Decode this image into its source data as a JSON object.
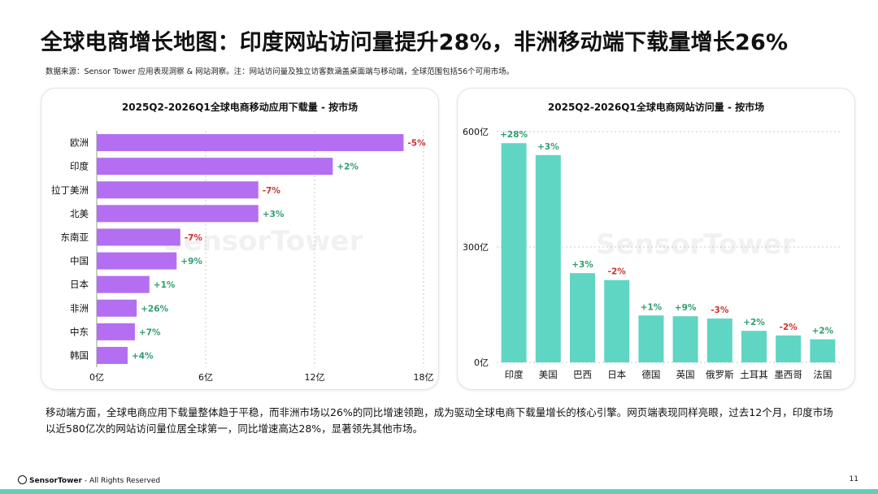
{
  "header": {
    "title": "全球电商增长地图：印度网站访问量提升28%，非洲移动端下载量增长26%",
    "source": "数据来源：Sensor Tower 应用表现洞察 & 网站洞察。注：网站访问量及独立访客数涵盖桌面端与移动端，全球范围包括56个可用市场。"
  },
  "chart_data": [
    {
      "type": "bar",
      "orientation": "horizontal",
      "title": "2025Q2-2026Q1全球电商移动应用下载量 - 按市场",
      "categories": [
        "欧洲",
        "印度",
        "拉丁美洲",
        "北美",
        "东南亚",
        "中国",
        "日本",
        "非洲",
        "中东",
        "韩国"
      ],
      "values": [
        16.9,
        13.0,
        8.9,
        8.9,
        4.6,
        4.4,
        2.9,
        2.2,
        2.1,
        1.7
      ],
      "data_labels": [
        "-5%",
        "+2%",
        "-7%",
        "+3%",
        "-7%",
        "+9%",
        "+1%",
        "+26%",
        "+7%",
        "+4%"
      ],
      "x_ticks": [
        "0亿",
        "6亿",
        "12亿",
        "18亿"
      ],
      "xlim": [
        0,
        18
      ],
      "grid": "vertical dotted",
      "colors": {
        "bar": "#b46ef1",
        "positive": "#2e9e6e",
        "negative": "#d1302f"
      }
    },
    {
      "type": "bar",
      "orientation": "vertical",
      "title": "2025Q2-2026Q1全球电商网站访问量 - 按市场",
      "categories": [
        "印度",
        "美国",
        "巴西",
        "日本",
        "德国",
        "英国",
        "俄罗斯",
        "土耳其",
        "墨西哥",
        "法国"
      ],
      "values": [
        570,
        539,
        232,
        214,
        122,
        120,
        114,
        82,
        70,
        60
      ],
      "data_labels": [
        "+28%",
        "+3%",
        "+3%",
        "-2%",
        "+1%",
        "+9%",
        "-3%",
        "+2%",
        "-2%",
        "+2%"
      ],
      "y_ticks": [
        "0亿",
        "300亿",
        "600亿"
      ],
      "ylim": [
        0,
        600
      ],
      "grid": "horizontal dotted",
      "colors": {
        "bar": "#5fd5c3",
        "positive": "#2e9e6e",
        "negative": "#d1302f"
      }
    }
  ],
  "summary": "移动端方面，全球电商应用下载量整体趋于平稳，而非洲市场以26%的同比增速领跑，成为驱动全球电商下载量增长的核心引擎。网页端表现同样亮眼，过去12个月，印度市场以近580亿次的网站访问量位居全球第一，同比增速高达28%，显著领先其他市场。",
  "watermark": "SensorTower",
  "footer": {
    "brand": "SensorTower",
    "rights": " - All Rights Reserved",
    "page": "11"
  }
}
